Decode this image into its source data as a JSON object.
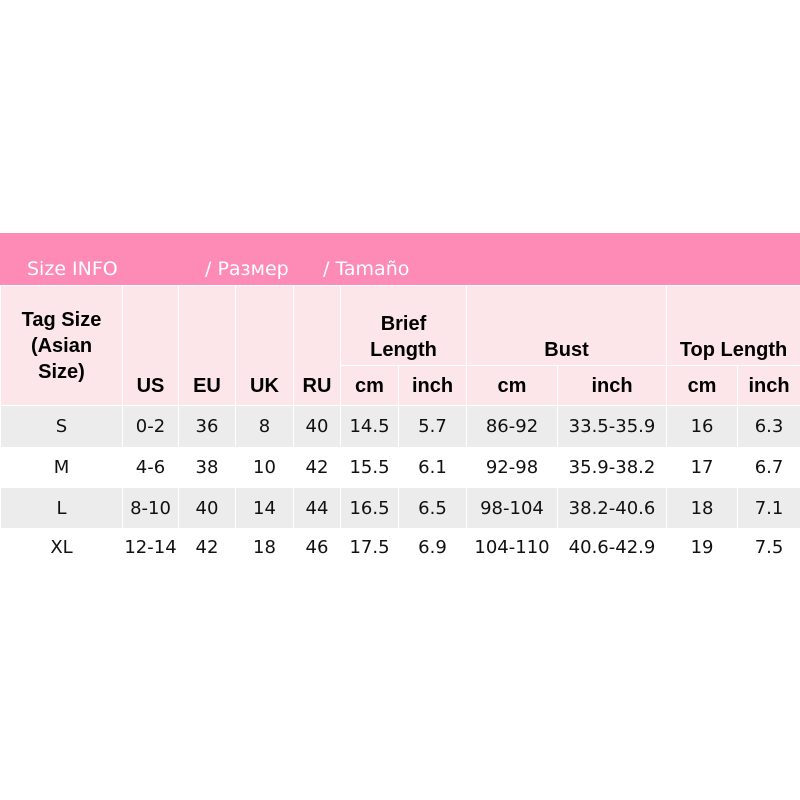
{
  "header": {
    "title": [
      "Size INFO",
      "/ Размер",
      "/ Tamaño"
    ]
  },
  "table": {
    "columns": [
      "Tag Size\n(Asian\nSize)",
      "US",
      "EU",
      "UK",
      "RU"
    ],
    "groups": [
      "Brief\nLength",
      "Bust",
      "Top Length"
    ],
    "subcolumns": [
      "cm",
      "inch",
      "cm",
      "inch",
      "cm",
      "inch"
    ],
    "rows": [
      [
        "S",
        "0-2",
        "36",
        "8",
        "40",
        "14.5",
        "5.7",
        "86-92",
        "33.5-35.9",
        "16",
        "6.3"
      ],
      [
        "M",
        "4-6",
        "38",
        "10",
        "42",
        "15.5",
        "6.1",
        "92-98",
        "35.9-38.2",
        "17",
        "6.7"
      ],
      [
        "L",
        "8-10",
        "40",
        "14",
        "44",
        "16.5",
        "6.5",
        "98-104",
        "38.2-40.6",
        "18",
        "7.1"
      ],
      [
        "XL",
        "12-14",
        "42",
        "18",
        "46",
        "17.5",
        "6.9",
        "104-110",
        "40.6-42.9",
        "19",
        "7.5"
      ]
    ]
  }
}
